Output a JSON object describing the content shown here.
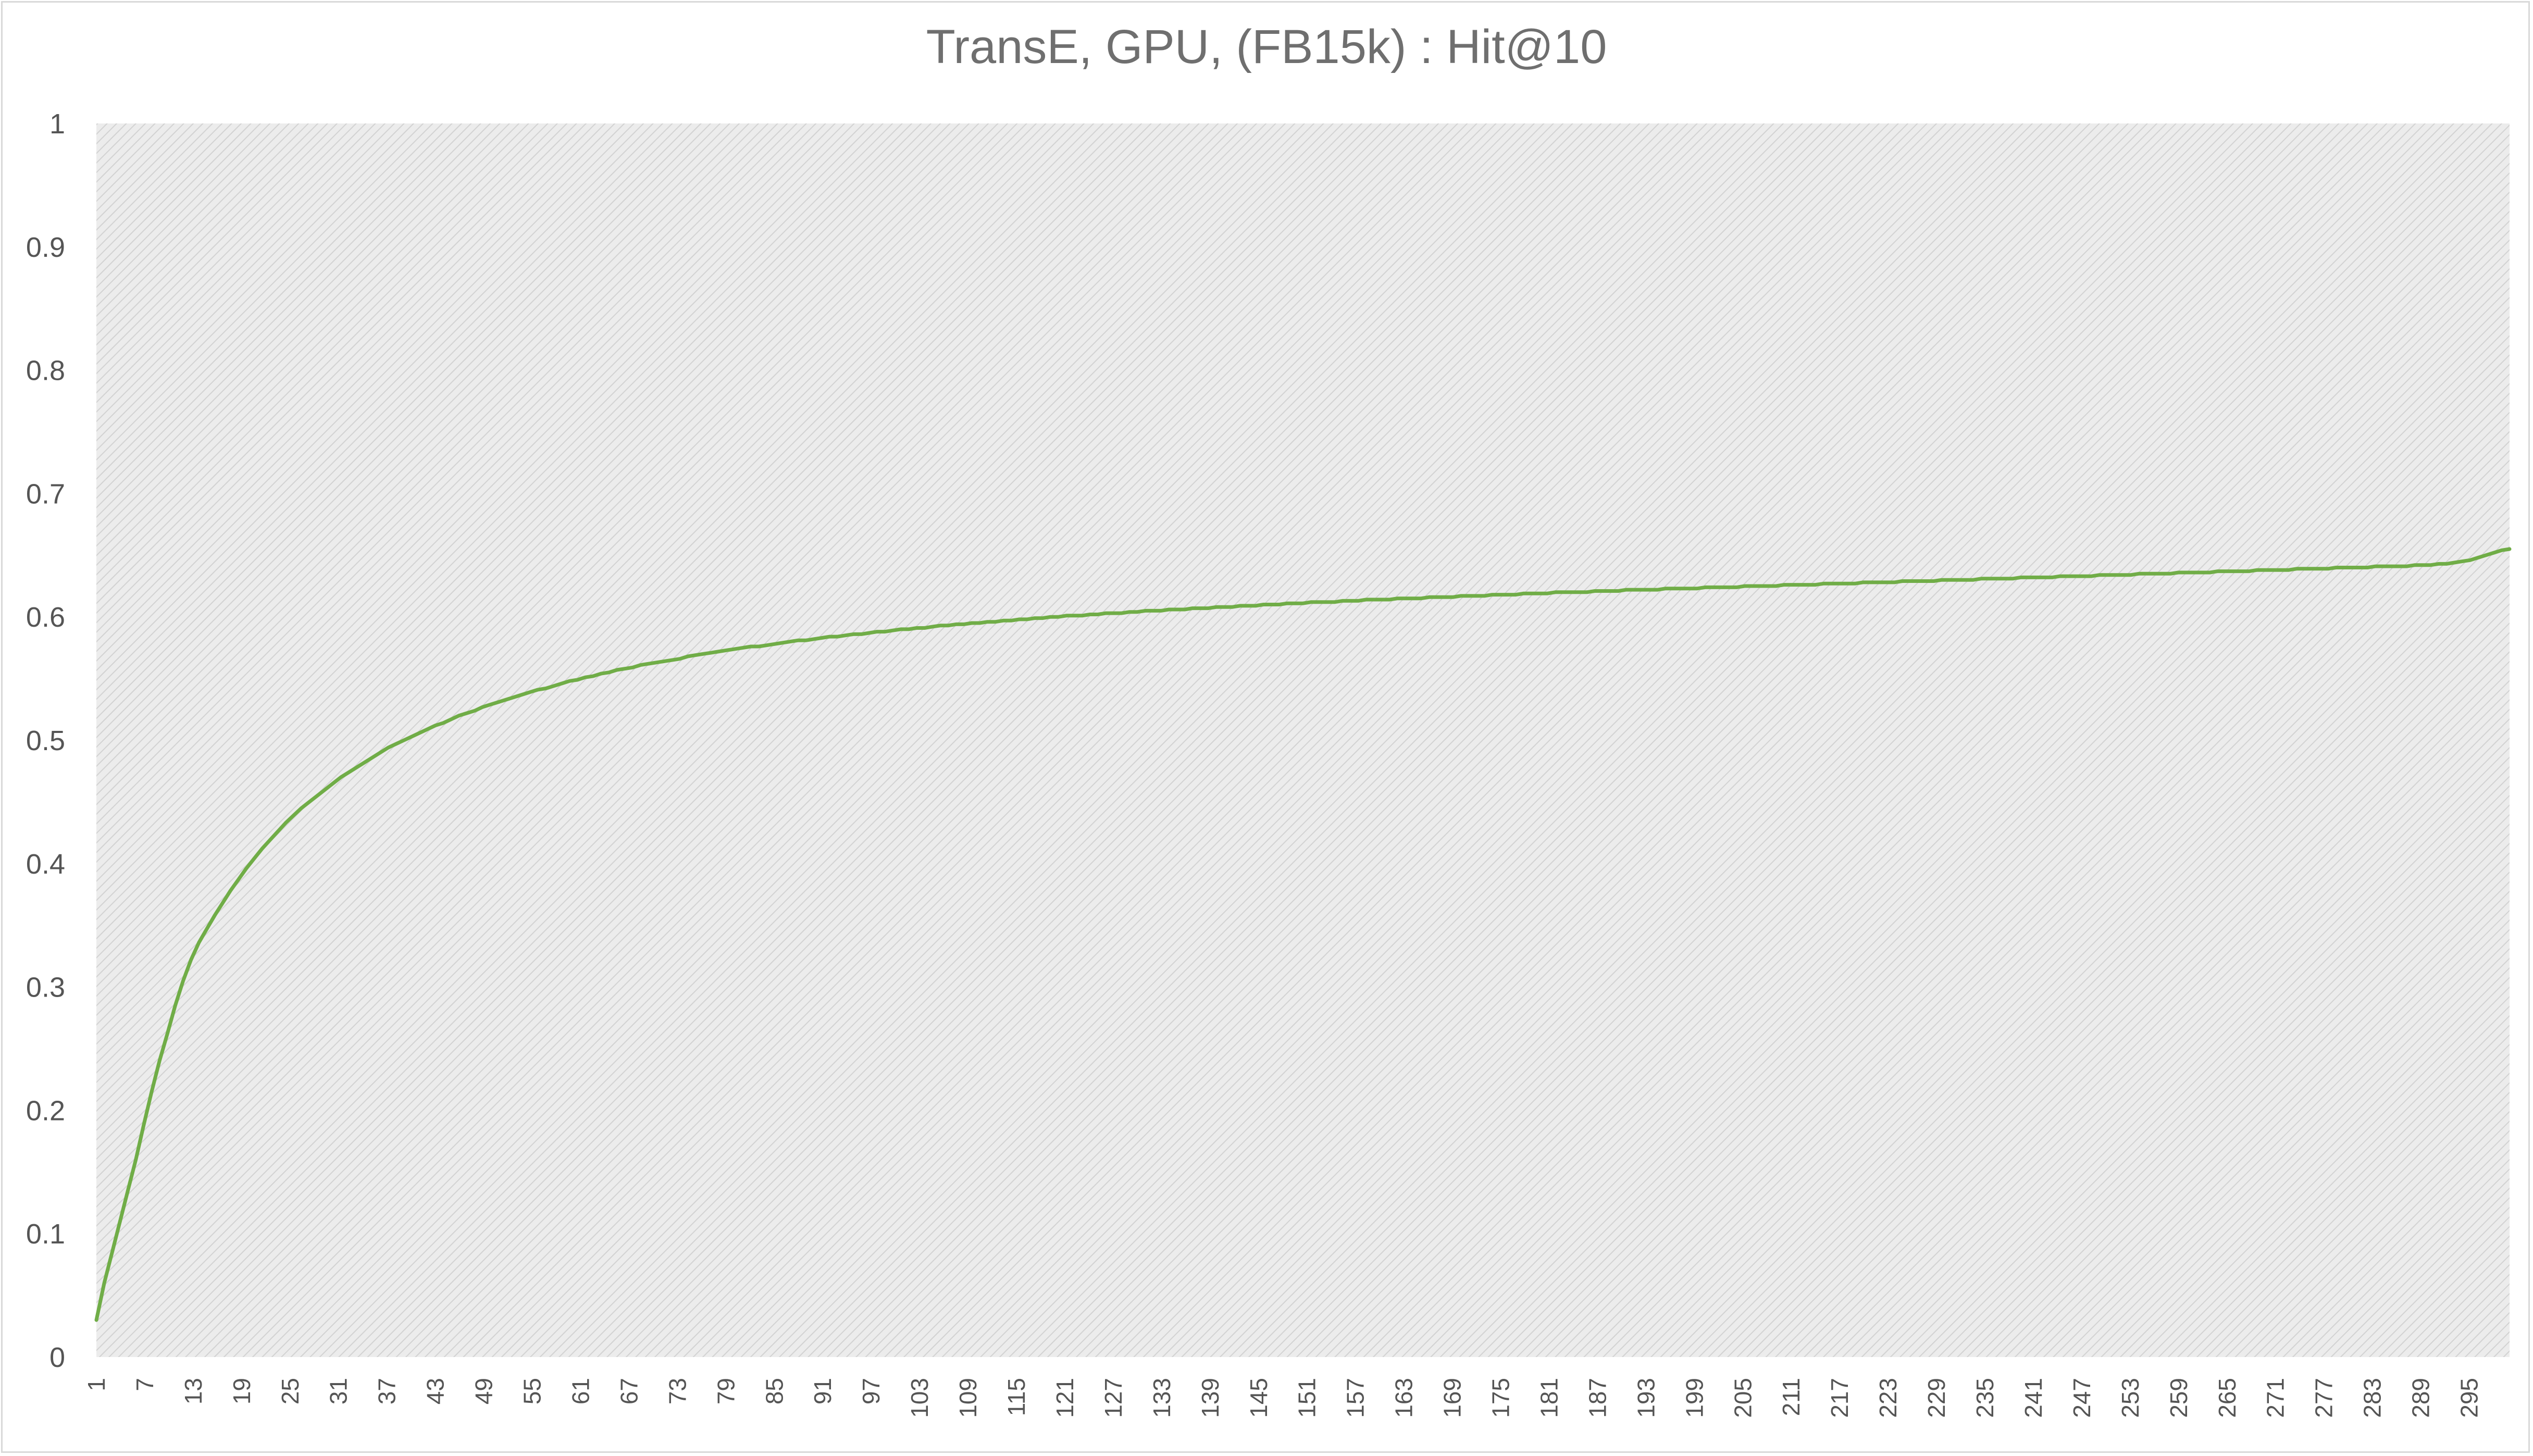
{
  "chart_data": {
    "type": "line",
    "title": "TransE, GPU, (FB15k) : Hit@10",
    "xlabel": "",
    "ylabel": "",
    "x_range": [
      1,
      300
    ],
    "ylim": [
      0,
      1
    ],
    "y_ticks": [
      "0",
      "0.1",
      "0.2",
      "0.3",
      "0.4",
      "0.5",
      "0.6",
      "0.7",
      "0.8",
      "0.9",
      "1"
    ],
    "x_tick_labels": [
      "1",
      "7",
      "13",
      "19",
      "25",
      "31",
      "37",
      "43",
      "49",
      "55",
      "61",
      "67",
      "73",
      "79",
      "85",
      "91",
      "97",
      "103",
      "109",
      "115",
      "121",
      "127",
      "133",
      "139",
      "145",
      "151",
      "157",
      "163",
      "169",
      "175",
      "181",
      "187",
      "193",
      "199",
      "205",
      "211",
      "217",
      "223",
      "229",
      "235",
      "241",
      "247",
      "253",
      "259",
      "265",
      "271",
      "277",
      "283",
      "289",
      "295"
    ],
    "grid": "hatched background",
    "legend": "none",
    "line_color": "#70ad47",
    "series": [
      {
        "values": [
          0.03,
          0.06,
          0.085,
          0.11,
          0.135,
          0.16,
          0.188,
          0.215,
          0.24,
          0.262,
          0.285,
          0.305,
          0.322,
          0.336,
          0.347,
          0.358,
          0.368,
          0.378,
          0.387,
          0.396,
          0.404,
          0.412,
          0.419,
          0.426,
          0.433,
          0.439,
          0.445,
          0.45,
          0.455,
          0.46,
          0.465,
          0.47,
          0.474,
          0.478,
          0.482,
          0.486,
          0.49,
          0.494,
          0.497,
          0.5,
          0.503,
          0.506,
          0.509,
          0.512,
          0.514,
          0.517,
          0.52,
          0.522,
          0.524,
          0.527,
          0.529,
          0.531,
          0.533,
          0.535,
          0.537,
          0.539,
          0.541,
          0.542,
          0.544,
          0.546,
          0.548,
          0.549,
          0.551,
          0.552,
          0.554,
          0.555,
          0.557,
          0.558,
          0.559,
          0.561,
          0.562,
          0.563,
          0.564,
          0.565,
          0.566,
          0.568,
          0.569,
          0.57,
          0.571,
          0.572,
          0.573,
          0.574,
          0.575,
          0.576,
          0.576,
          0.577,
          0.578,
          0.579,
          0.58,
          0.581,
          0.581,
          0.582,
          0.583,
          0.584,
          0.584,
          0.585,
          0.586,
          0.586,
          0.587,
          0.588,
          0.588,
          0.589,
          0.59,
          0.59,
          0.591,
          0.591,
          0.592,
          0.593,
          0.593,
          0.594,
          0.594,
          0.595,
          0.595,
          0.596,
          0.596,
          0.597,
          0.597,
          0.598,
          0.598,
          0.599,
          0.599,
          0.6,
          0.6,
          0.601,
          0.601,
          0.601,
          0.602,
          0.602,
          0.603,
          0.603,
          0.603,
          0.604,
          0.604,
          0.605,
          0.605,
          0.605,
          0.606,
          0.606,
          0.606,
          0.607,
          0.607,
          0.607,
          0.608,
          0.608,
          0.608,
          0.609,
          0.609,
          0.609,
          0.61,
          0.61,
          0.61,
          0.611,
          0.611,
          0.611,
          0.612,
          0.612,
          0.612,
          0.612,
          0.613,
          0.613,
          0.613,
          0.614,
          0.614,
          0.614,
          0.614,
          0.615,
          0.615,
          0.615,
          0.615,
          0.616,
          0.616,
          0.616,
          0.616,
          0.617,
          0.617,
          0.617,
          0.617,
          0.618,
          0.618,
          0.618,
          0.618,
          0.619,
          0.619,
          0.619,
          0.619,
          0.62,
          0.62,
          0.62,
          0.62,
          0.62,
          0.621,
          0.621,
          0.621,
          0.621,
          0.622,
          0.622,
          0.622,
          0.622,
          0.622,
          0.623,
          0.623,
          0.623,
          0.623,
          0.623,
          0.624,
          0.624,
          0.624,
          0.624,
          0.624,
          0.625,
          0.625,
          0.625,
          0.625,
          0.625,
          0.626,
          0.626,
          0.626,
          0.626,
          0.626,
          0.627,
          0.627,
          0.627,
          0.627,
          0.627,
          0.628,
          0.628,
          0.628,
          0.628,
          0.628,
          0.629,
          0.629,
          0.629,
          0.629,
          0.629,
          0.63,
          0.63,
          0.63,
          0.63,
          0.63,
          0.631,
          0.631,
          0.631,
          0.631,
          0.631,
          0.632,
          0.632,
          0.632,
          0.632,
          0.632,
          0.633,
          0.633,
          0.633,
          0.633,
          0.633,
          0.634,
          0.634,
          0.634,
          0.634,
          0.634,
          0.635,
          0.635,
          0.635,
          0.635,
          0.635,
          0.636,
          0.636,
          0.636,
          0.636,
          0.636,
          0.637,
          0.637,
          0.637,
          0.637,
          0.637,
          0.638,
          0.638,
          0.638,
          0.638,
          0.638,
          0.639,
          0.639,
          0.639,
          0.639,
          0.639,
          0.64,
          0.64,
          0.64,
          0.64,
          0.64,
          0.641,
          0.641,
          0.641,
          0.641,
          0.641,
          0.642,
          0.642,
          0.642,
          0.643,
          0.643,
          0.644,
          0.645,
          0.646,
          0.648,
          0.65,
          0.652,
          0.654,
          0.655
        ]
      }
    ]
  }
}
